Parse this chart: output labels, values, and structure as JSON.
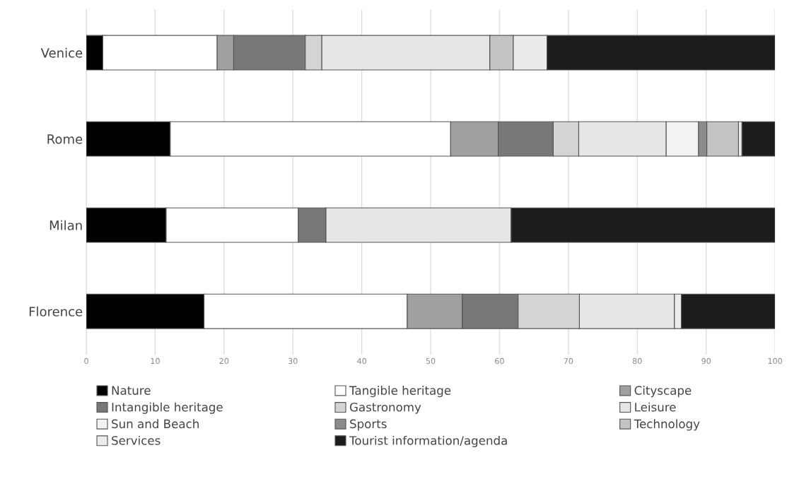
{
  "chart_data": {
    "type": "bar",
    "orientation": "horizontal",
    "stacked": true,
    "categories": [
      "Venice",
      "Rome",
      "Milan",
      "Florence"
    ],
    "series": [
      {
        "name": "Nature",
        "color": "#000000",
        "values": [
          2.4,
          12.2,
          11.6,
          17.1
        ]
      },
      {
        "name": "Tangible heritage",
        "color": "#ffffff",
        "values": [
          16.6,
          40.7,
          19.2,
          29.5
        ]
      },
      {
        "name": "Cityscape",
        "color": "#a0a0a0",
        "values": [
          2.4,
          6.9,
          0,
          8.0
        ]
      },
      {
        "name": "Intangible heritage",
        "color": "#787878",
        "values": [
          10.4,
          8.0,
          4.0,
          8.1
        ]
      },
      {
        "name": "Gastronomy",
        "color": "#d4d4d4",
        "values": [
          2.4,
          3.7,
          0,
          8.9
        ]
      },
      {
        "name": "Leisure",
        "color": "#e6e6e6",
        "values": [
          24.4,
          12.7,
          26.9,
          13.8
        ]
      },
      {
        "name": "Sun and Beach",
        "color": "#f2f2f2",
        "values": [
          0,
          4.7,
          0,
          0
        ]
      },
      {
        "name": "Sports",
        "color": "#8c8c8c",
        "values": [
          0,
          1.2,
          0,
          0
        ]
      },
      {
        "name": "Technology",
        "color": "#c4c4c4",
        "values": [
          3.4,
          4.6,
          0,
          0
        ]
      },
      {
        "name": "Services",
        "color": "#ebebeb",
        "values": [
          4.9,
          0.5,
          0,
          1.0
        ]
      },
      {
        "name": "Tourist information/agenda",
        "color": "#1c1c1c",
        "values": [
          33.1,
          4.8,
          38.3,
          13.6
        ]
      }
    ],
    "xlim": [
      0,
      100
    ],
    "xticks": [
      0,
      10,
      20,
      30,
      40,
      50,
      60,
      70,
      80,
      90,
      100
    ],
    "grid": "x",
    "legend": "bottom"
  }
}
